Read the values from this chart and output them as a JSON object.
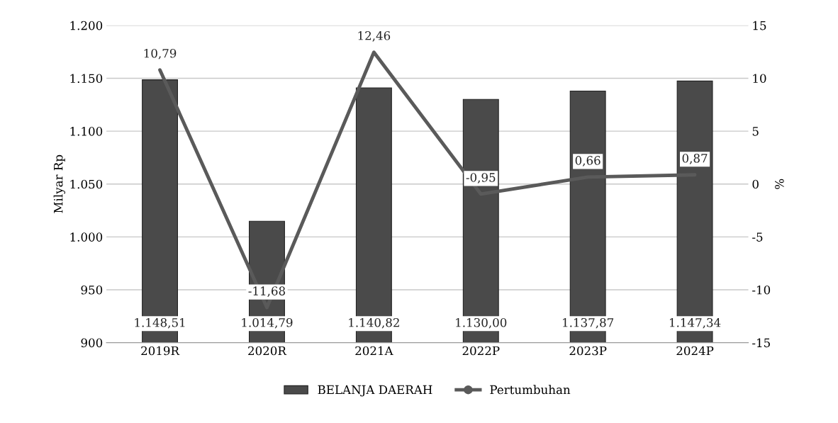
{
  "chart_data": {
    "type": "bar",
    "categories": [
      "2019R",
      "2020R",
      "2021A",
      "2022P",
      "2023P",
      "2024P"
    ],
    "ylabel": "Milyar Rp",
    "y2label": "%",
    "ylim": [
      900,
      1200
    ],
    "yticks": [
      {
        "value": 900,
        "label": "900"
      },
      {
        "value": 950,
        "label": "950"
      },
      {
        "value": 1000,
        "label": "1.000"
      },
      {
        "value": 1050,
        "label": "1.050"
      },
      {
        "value": 1100,
        "label": "1.100"
      },
      {
        "value": 1150,
        "label": "1.150"
      },
      {
        "value": 1200,
        "label": "1.200"
      }
    ],
    "y2lim": [
      -15,
      15
    ],
    "y2ticks": [
      -15,
      -10,
      -5,
      0,
      5,
      10,
      15
    ],
    "series": [
      {
        "name": "BELANJA DAERAH",
        "color": "#4a4a4a",
        "values": [
          1148.51,
          1014.79,
          1140.82,
          1130.0,
          1137.87,
          1147.34
        ],
        "value_labels": [
          "1.148,51",
          "1.014,79",
          "1.140,82",
          "1.130,00",
          "1.137,87",
          "1.147,34"
        ]
      },
      {
        "name": "Pertumbuhan",
        "type": "line",
        "axis": "y2",
        "color": "#5a5a5a",
        "values": [
          10.79,
          -11.68,
          12.46,
          -0.95,
          0.66,
          0.87
        ],
        "value_labels": [
          "10,79",
          "-11,68",
          "12,46",
          "-0,95",
          "0,66",
          "0,87"
        ]
      }
    ],
    "grid": "y",
    "legend": "bottom",
    "marker": "none",
    "line_style": "solid"
  }
}
